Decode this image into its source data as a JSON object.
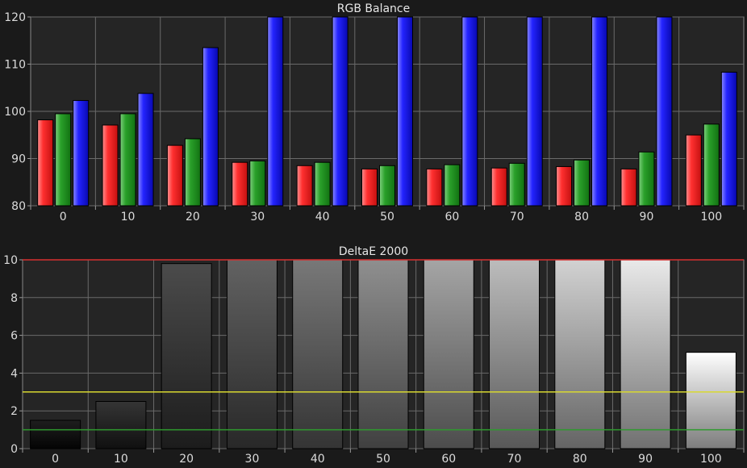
{
  "chart_data": [
    {
      "type": "bar",
      "title": "RGB Balance",
      "categories": [
        "0",
        "10",
        "20",
        "30",
        "40",
        "50",
        "60",
        "70",
        "80",
        "90",
        "100"
      ],
      "ylim": [
        80,
        120
      ],
      "yticks": [
        "80",
        "90",
        "100",
        "110",
        "120"
      ],
      "grid": true,
      "series": [
        {
          "color": "#ff3a3a",
          "values": [
            98.2,
            97.1,
            92.8,
            89.2,
            88.5,
            87.8,
            87.8,
            88.0,
            88.3,
            87.8,
            95.0
          ]
        },
        {
          "color": "#2ea82e",
          "values": [
            99.5,
            99.5,
            94.2,
            89.5,
            89.2,
            88.5,
            88.7,
            89.0,
            89.7,
            91.4,
            97.3
          ]
        },
        {
          "color": "#2222ff",
          "values": [
            102.3,
            103.8,
            113.5,
            120,
            120,
            120,
            120,
            120,
            120,
            120,
            108.3
          ]
        }
      ]
    },
    {
      "type": "bar",
      "title": "DeltaE 2000",
      "categories": [
        "0",
        "10",
        "20",
        "30",
        "40",
        "50",
        "60",
        "70",
        "80",
        "90",
        "100"
      ],
      "ylim": [
        0,
        10
      ],
      "yticks": [
        "0",
        "2",
        "4",
        "6",
        "8",
        "10"
      ],
      "grid": true,
      "values": [
        1.5,
        2.5,
        9.8,
        10,
        10,
        10,
        10,
        10,
        10,
        10,
        5.1
      ],
      "thresholds": [
        {
          "value": 10,
          "color": "#d63030"
        },
        {
          "value": 3,
          "color": "#d8d830"
        },
        {
          "value": 1,
          "color": "#2e9a2e"
        }
      ]
    }
  ]
}
